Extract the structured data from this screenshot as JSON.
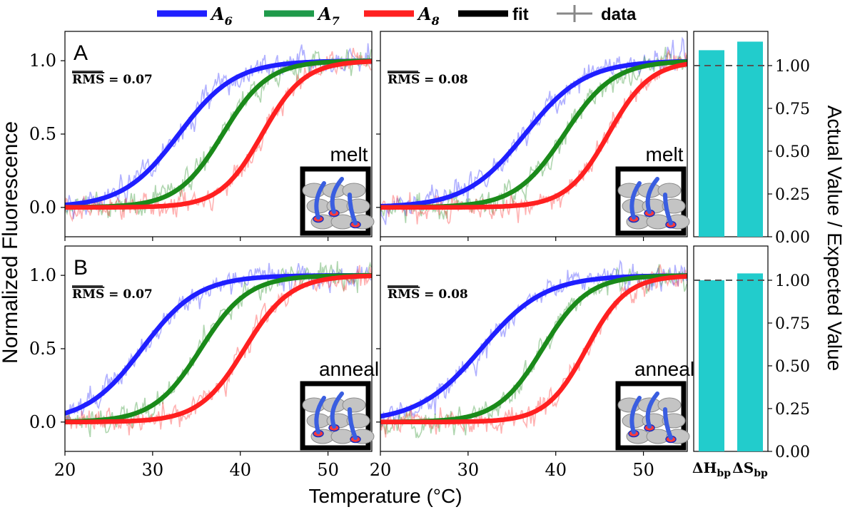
{
  "legend": {
    "entries": [
      {
        "label": "A",
        "sub": "6",
        "color": "#1f1fff",
        "kind": "line"
      },
      {
        "label": "A",
        "sub": "7",
        "color": "#1f9a4a",
        "kind": "line"
      },
      {
        "label": "A",
        "sub": "8",
        "color": "#ff2020",
        "kind": "line"
      },
      {
        "label": "fit",
        "color": "#000000",
        "kind": "line"
      },
      {
        "label": "data",
        "color": "#888888",
        "kind": "errorbar"
      }
    ]
  },
  "labels": {
    "ylabel": "Normalized Fluorescence",
    "xlabel": "Temperature (°C)",
    "ylabel_right": "Actual Value / Expected Value",
    "row_a": "A",
    "row_b": "B"
  },
  "colors": {
    "blue": "#1f1fff",
    "green": "#1a8a1a",
    "red": "#ff2020",
    "bar": "#22cccc"
  },
  "chart_data": [
    {
      "type": "line",
      "id": "A-left",
      "row": "A",
      "mode": "melt",
      "rms": "0.07",
      "rms_label": "RMS",
      "xlim": [
        20,
        55
      ],
      "ylim": [
        -0.2,
        1.2
      ],
      "xticks": [
        20,
        30,
        40,
        50
      ],
      "yticks": [
        "0.0",
        "0.5",
        "1.0"
      ],
      "series": [
        {
          "name": "A6",
          "color": "#1f1fff",
          "tm": 33,
          "width": 3.2,
          "start": 0.0
        },
        {
          "name": "A7",
          "color": "#1a8a1a",
          "tm": 38,
          "width": 2.6,
          "start": 0.0
        },
        {
          "name": "A8",
          "color": "#ff2020",
          "tm": 42.5,
          "width": 2.4,
          "start": 0.0
        }
      ]
    },
    {
      "type": "line",
      "id": "A-right",
      "row": "A",
      "mode": "melt",
      "rms": "0.08",
      "rms_label": "RMS",
      "xlim": [
        20,
        55
      ],
      "ylim": [
        -0.2,
        1.2
      ],
      "xticks": [
        20,
        30,
        40,
        50
      ],
      "yticks": [
        "0.0",
        "0.5",
        "1.0"
      ],
      "series": [
        {
          "name": "A6",
          "color": "#1f1fff",
          "tm": 36.5,
          "width": 3.4,
          "start": 0.0
        },
        {
          "name": "A7",
          "color": "#1a8a1a",
          "tm": 41,
          "width": 2.8,
          "start": 0.0
        },
        {
          "name": "A8",
          "color": "#ff2020",
          "tm": 46,
          "width": 2.4,
          "start": 0.0
        }
      ]
    },
    {
      "type": "line",
      "id": "B-left",
      "row": "B",
      "mode": "anneal",
      "rms": "0.07",
      "rms_label": "RMS",
      "xlim": [
        20,
        55
      ],
      "ylim": [
        -0.2,
        1.2
      ],
      "xticks": [
        20,
        30,
        40,
        50
      ],
      "yticks": [
        "0.0",
        "0.5",
        "1.0"
      ],
      "series": [
        {
          "name": "A6",
          "color": "#1f1fff",
          "tm": 28.8,
          "width": 3.2,
          "start": 0.0
        },
        {
          "name": "A7",
          "color": "#1a8a1a",
          "tm": 35.5,
          "width": 2.7,
          "start": 0.0
        },
        {
          "name": "A8",
          "color": "#ff2020",
          "tm": 40.5,
          "width": 2.6,
          "start": 0.0
        }
      ]
    },
    {
      "type": "line",
      "id": "B-right",
      "row": "B",
      "mode": "anneal",
      "rms": "0.08",
      "rms_label": "RMS",
      "xlim": [
        20,
        55
      ],
      "ylim": [
        -0.2,
        1.2
      ],
      "xticks": [
        20,
        30,
        40,
        50
      ],
      "yticks": [
        "0.0",
        "0.5",
        "1.0"
      ],
      "series": [
        {
          "name": "A6",
          "color": "#1f1fff",
          "tm": 31.5,
          "width": 3.6,
          "start": 0.0
        },
        {
          "name": "A7",
          "color": "#1a8a1a",
          "tm": 38.5,
          "width": 2.6,
          "start": 0.0
        },
        {
          "name": "A8",
          "color": "#ff2020",
          "tm": 43.5,
          "width": 2.3,
          "start": 0.0
        }
      ]
    },
    {
      "type": "bar",
      "id": "A-bar",
      "row": "A",
      "categories": [
        "ΔH_bp",
        "ΔS_bp"
      ],
      "values": [
        1.09,
        1.14
      ],
      "ylim": [
        0,
        1.2
      ],
      "reference": 1.0,
      "yticks": [
        "0.00",
        "0.25",
        "0.50",
        "0.75",
        "1.00"
      ]
    },
    {
      "type": "bar",
      "id": "B-bar",
      "row": "B",
      "categories": [
        "ΔH_bp",
        "ΔS_bp"
      ],
      "values": [
        1.0,
        1.04
      ],
      "ylim": [
        0,
        1.2
      ],
      "reference": 1.0,
      "yticks": [
        "0.00",
        "0.25",
        "0.50",
        "0.75",
        "1.00"
      ]
    }
  ]
}
